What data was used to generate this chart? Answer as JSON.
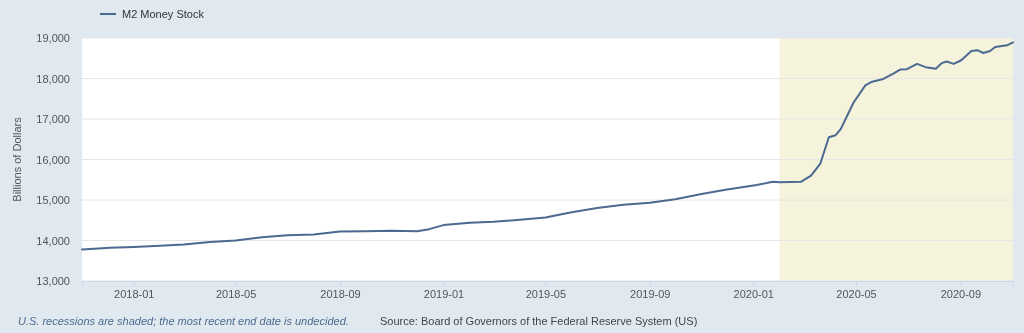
{
  "chart_data": {
    "type": "line",
    "ylabel": "Billions of Dollars",
    "legend": "top left",
    "grid": "y",
    "xlim": [
      "2017-11-01",
      "2020-11-02"
    ],
    "xticks": [
      {
        "value": "2018-01-01",
        "label": "2018-01"
      },
      {
        "value": "2018-05-01",
        "label": "2018-05"
      },
      {
        "value": "2018-09-01",
        "label": "2018-09"
      },
      {
        "value": "2019-01-01",
        "label": "2019-01"
      },
      {
        "value": "2019-05-01",
        "label": "2019-05"
      },
      {
        "value": "2019-09-01",
        "label": "2019-09"
      },
      {
        "value": "2020-01-01",
        "label": "2020-01"
      },
      {
        "value": "2020-05-01",
        "label": "2020-05"
      },
      {
        "value": "2020-09-01",
        "label": "2020-09"
      }
    ],
    "ylim": [
      13000,
      19000
    ],
    "yticks": [
      {
        "value": 13000,
        "label": "13,000"
      },
      {
        "value": 14000,
        "label": "14,000"
      },
      {
        "value": 15000,
        "label": "15,000"
      },
      {
        "value": 16000,
        "label": "16,000"
      },
      {
        "value": 17000,
        "label": "17,000"
      },
      {
        "value": 18000,
        "label": "18,000"
      },
      {
        "value": 19000,
        "label": "19,000"
      }
    ],
    "bands": [
      {
        "axis": "x",
        "from": "2020-02-01",
        "to": "2020-11-02",
        "color": "#f5f3dc"
      }
    ],
    "x": [
      "2017-11-01",
      "2017-12-04",
      "2018-01-01",
      "2018-02-01",
      "2018-03-01",
      "2018-04-01",
      "2018-05-01",
      "2018-06-01",
      "2018-07-01",
      "2018-08-01",
      "2018-09-01",
      "2018-10-01",
      "2018-11-01",
      "2018-12-01",
      "2018-12-15",
      "2019-01-01",
      "2019-02-01",
      "2019-03-01",
      "2019-04-01",
      "2019-05-01",
      "2019-06-01",
      "2019-07-01",
      "2019-08-01",
      "2019-09-01",
      "2019-10-01",
      "2019-11-01",
      "2019-12-01",
      "2020-01-05",
      "2020-01-24",
      "2020-02-01",
      "2020-02-26",
      "2020-03-09",
      "2020-03-20",
      "2020-03-30",
      "2020-04-07",
      "2020-04-13",
      "2020-04-28",
      "2020-05-12",
      "2020-05-20",
      "2020-06-01",
      "2020-06-14",
      "2020-06-22",
      "2020-06-30",
      "2020-07-12",
      "2020-07-22",
      "2020-08-03",
      "2020-08-10",
      "2020-08-16",
      "2020-08-24",
      "2020-09-02",
      "2020-09-14",
      "2020-09-21",
      "2020-09-28",
      "2020-10-06",
      "2020-10-12",
      "2020-10-26",
      "2020-11-02"
    ],
    "series": [
      {
        "name": "M2 Money Stock",
        "color": "#4b6a8f",
        "values": [
          13780,
          13820,
          13840,
          13870,
          13900,
          13960,
          14000,
          14080,
          14130,
          14150,
          14220,
          14230,
          14240,
          14230,
          14280,
          14380,
          14440,
          14460,
          14510,
          14570,
          14700,
          14800,
          14880,
          14930,
          15020,
          15150,
          15260,
          15370,
          15450,
          15440,
          15450,
          15600,
          15900,
          16550,
          16600,
          16750,
          17400,
          17830,
          17920,
          17980,
          18120,
          18220,
          18230,
          18360,
          18280,
          18240,
          18380,
          18420,
          18360,
          18450,
          18680,
          18700,
          18630,
          18680,
          18780,
          18820,
          18890
        ]
      }
    ],
    "annotations": [
      "U.S. recessions are shaded; the most recent end date is undecided.",
      "Source: Board of Governors of the Federal Reserve System (US)"
    ]
  }
}
